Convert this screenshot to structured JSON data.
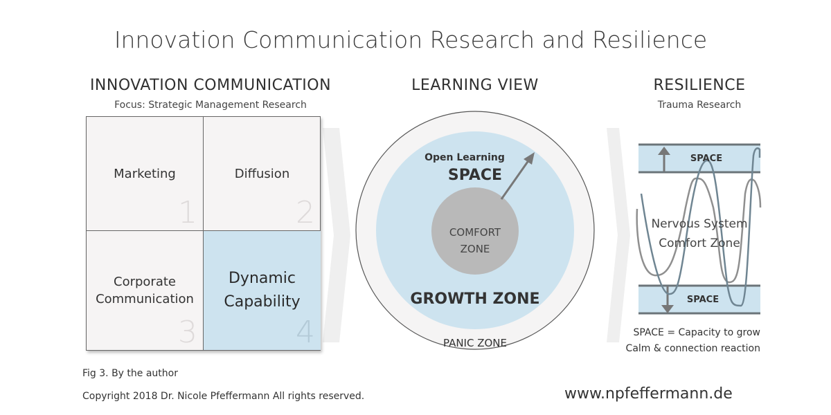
{
  "title": "Innovation Communication Research and Resilience",
  "left": {
    "heading": "INNOVATION COMMUNICATION",
    "subheading": "Focus: Strategic Management Research",
    "quadrants": [
      {
        "number": "1",
        "label": "Marketing"
      },
      {
        "number": "2",
        "label": "Diffusion"
      },
      {
        "number": "3",
        "label": "Corporate Communication"
      },
      {
        "number": "4",
        "label": "Dynamic Capability"
      }
    ]
  },
  "middle": {
    "heading": "LEARNING VIEW",
    "open_learning": "Open Learning",
    "space": "SPACE",
    "comfort_zone": "COMFORT ZONE",
    "growth_zone": "GROWTH ZONE",
    "panic_zone": "PANIC ZONE"
  },
  "right": {
    "heading": "RESILIENCE",
    "subheading": "Trauma Research",
    "top_band": "SPACE",
    "bottom_band": "SPACE",
    "center_text": "Nervous System Comfort Zone",
    "note_line1": "SPACE = Capacity to grow",
    "note_line2": "Calm & connection reaction"
  },
  "footer": {
    "fig": "Fig 3. By the author",
    "copyright": "Copyright 2018 Dr. Nicole Pfeffermann All rights reserved.",
    "website": "www.npfeffermann.de"
  },
  "colors": {
    "blue": "#cde3ef",
    "cell": "#f6f4f4",
    "comfort": "#b9b9b9",
    "band_line": "#6b7479"
  }
}
